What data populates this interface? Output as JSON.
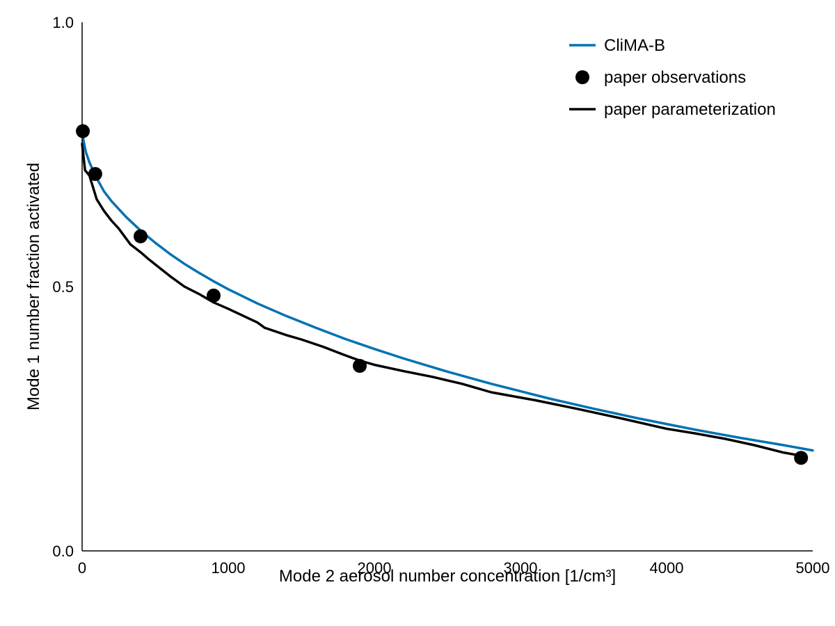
{
  "chart_data": {
    "type": "line",
    "title": "",
    "xlabel": "Mode 2 aerosol number concentration [1/cm³]",
    "ylabel": "Mode 1 number fraction activated",
    "xlim": [
      0,
      5000
    ],
    "ylim": [
      0.0,
      1.0
    ],
    "xticks": [
      0,
      1000,
      2000,
      3000,
      4000,
      5000
    ],
    "xtick_labels": [
      "0",
      "1000",
      "2000",
      "3000",
      "4000",
      "5000"
    ],
    "yticks": [
      0.0,
      0.5,
      1.0
    ],
    "ytick_labels": [
      "0.0",
      "0.5",
      "1.0"
    ],
    "grid": false,
    "legend_position": "top-right",
    "series": [
      {
        "name": "CliMA-B",
        "kind": "line",
        "color": "#0072B2",
        "x": [
          0,
          25,
          50,
          100,
          150,
          200,
          300,
          400,
          500,
          600,
          700,
          800,
          900,
          1000,
          1200,
          1400,
          1600,
          1800,
          2000,
          2200,
          2500,
          2800,
          3000,
          3200,
          3500,
          3800,
          4000,
          4200,
          4500,
          4800,
          5000
        ],
        "y": [
          0.79,
          0.755,
          0.735,
          0.705,
          0.68,
          0.662,
          0.632,
          0.606,
          0.583,
          0.562,
          0.543,
          0.526,
          0.51,
          0.495,
          0.468,
          0.444,
          0.422,
          0.401,
          0.382,
          0.364,
          0.339,
          0.316,
          0.302,
          0.288,
          0.269,
          0.251,
          0.24,
          0.229,
          0.214,
          0.2,
          0.19
        ]
      },
      {
        "name": "paper observations",
        "kind": "scatter",
        "color": "#000000",
        "x": [
          5,
          90,
          400,
          900,
          1900,
          4920
        ],
        "y": [
          0.794,
          0.713,
          0.595,
          0.483,
          0.35,
          0.176
        ]
      },
      {
        "name": "paper parameterization",
        "kind": "line",
        "color": "#000000",
        "x": [
          0,
          20,
          50,
          100,
          150,
          200,
          250,
          330,
          400,
          450,
          600,
          700,
          800,
          900,
          1000,
          1100,
          1200,
          1250,
          1400,
          1500,
          1650,
          1800,
          1900,
          2000,
          2200,
          2400,
          2600,
          2800,
          3100,
          3400,
          3700,
          4000,
          4200,
          4400,
          4600,
          4800,
          4920
        ],
        "y": [
          0.77,
          0.72,
          0.71,
          0.665,
          0.643,
          0.625,
          0.61,
          0.58,
          0.565,
          0.553,
          0.52,
          0.5,
          0.486,
          0.47,
          0.458,
          0.445,
          0.432,
          0.422,
          0.408,
          0.4,
          0.386,
          0.37,
          0.36,
          0.352,
          0.34,
          0.329,
          0.316,
          0.3,
          0.285,
          0.268,
          0.25,
          0.231,
          0.222,
          0.212,
          0.2,
          0.186,
          0.18
        ]
      }
    ]
  }
}
